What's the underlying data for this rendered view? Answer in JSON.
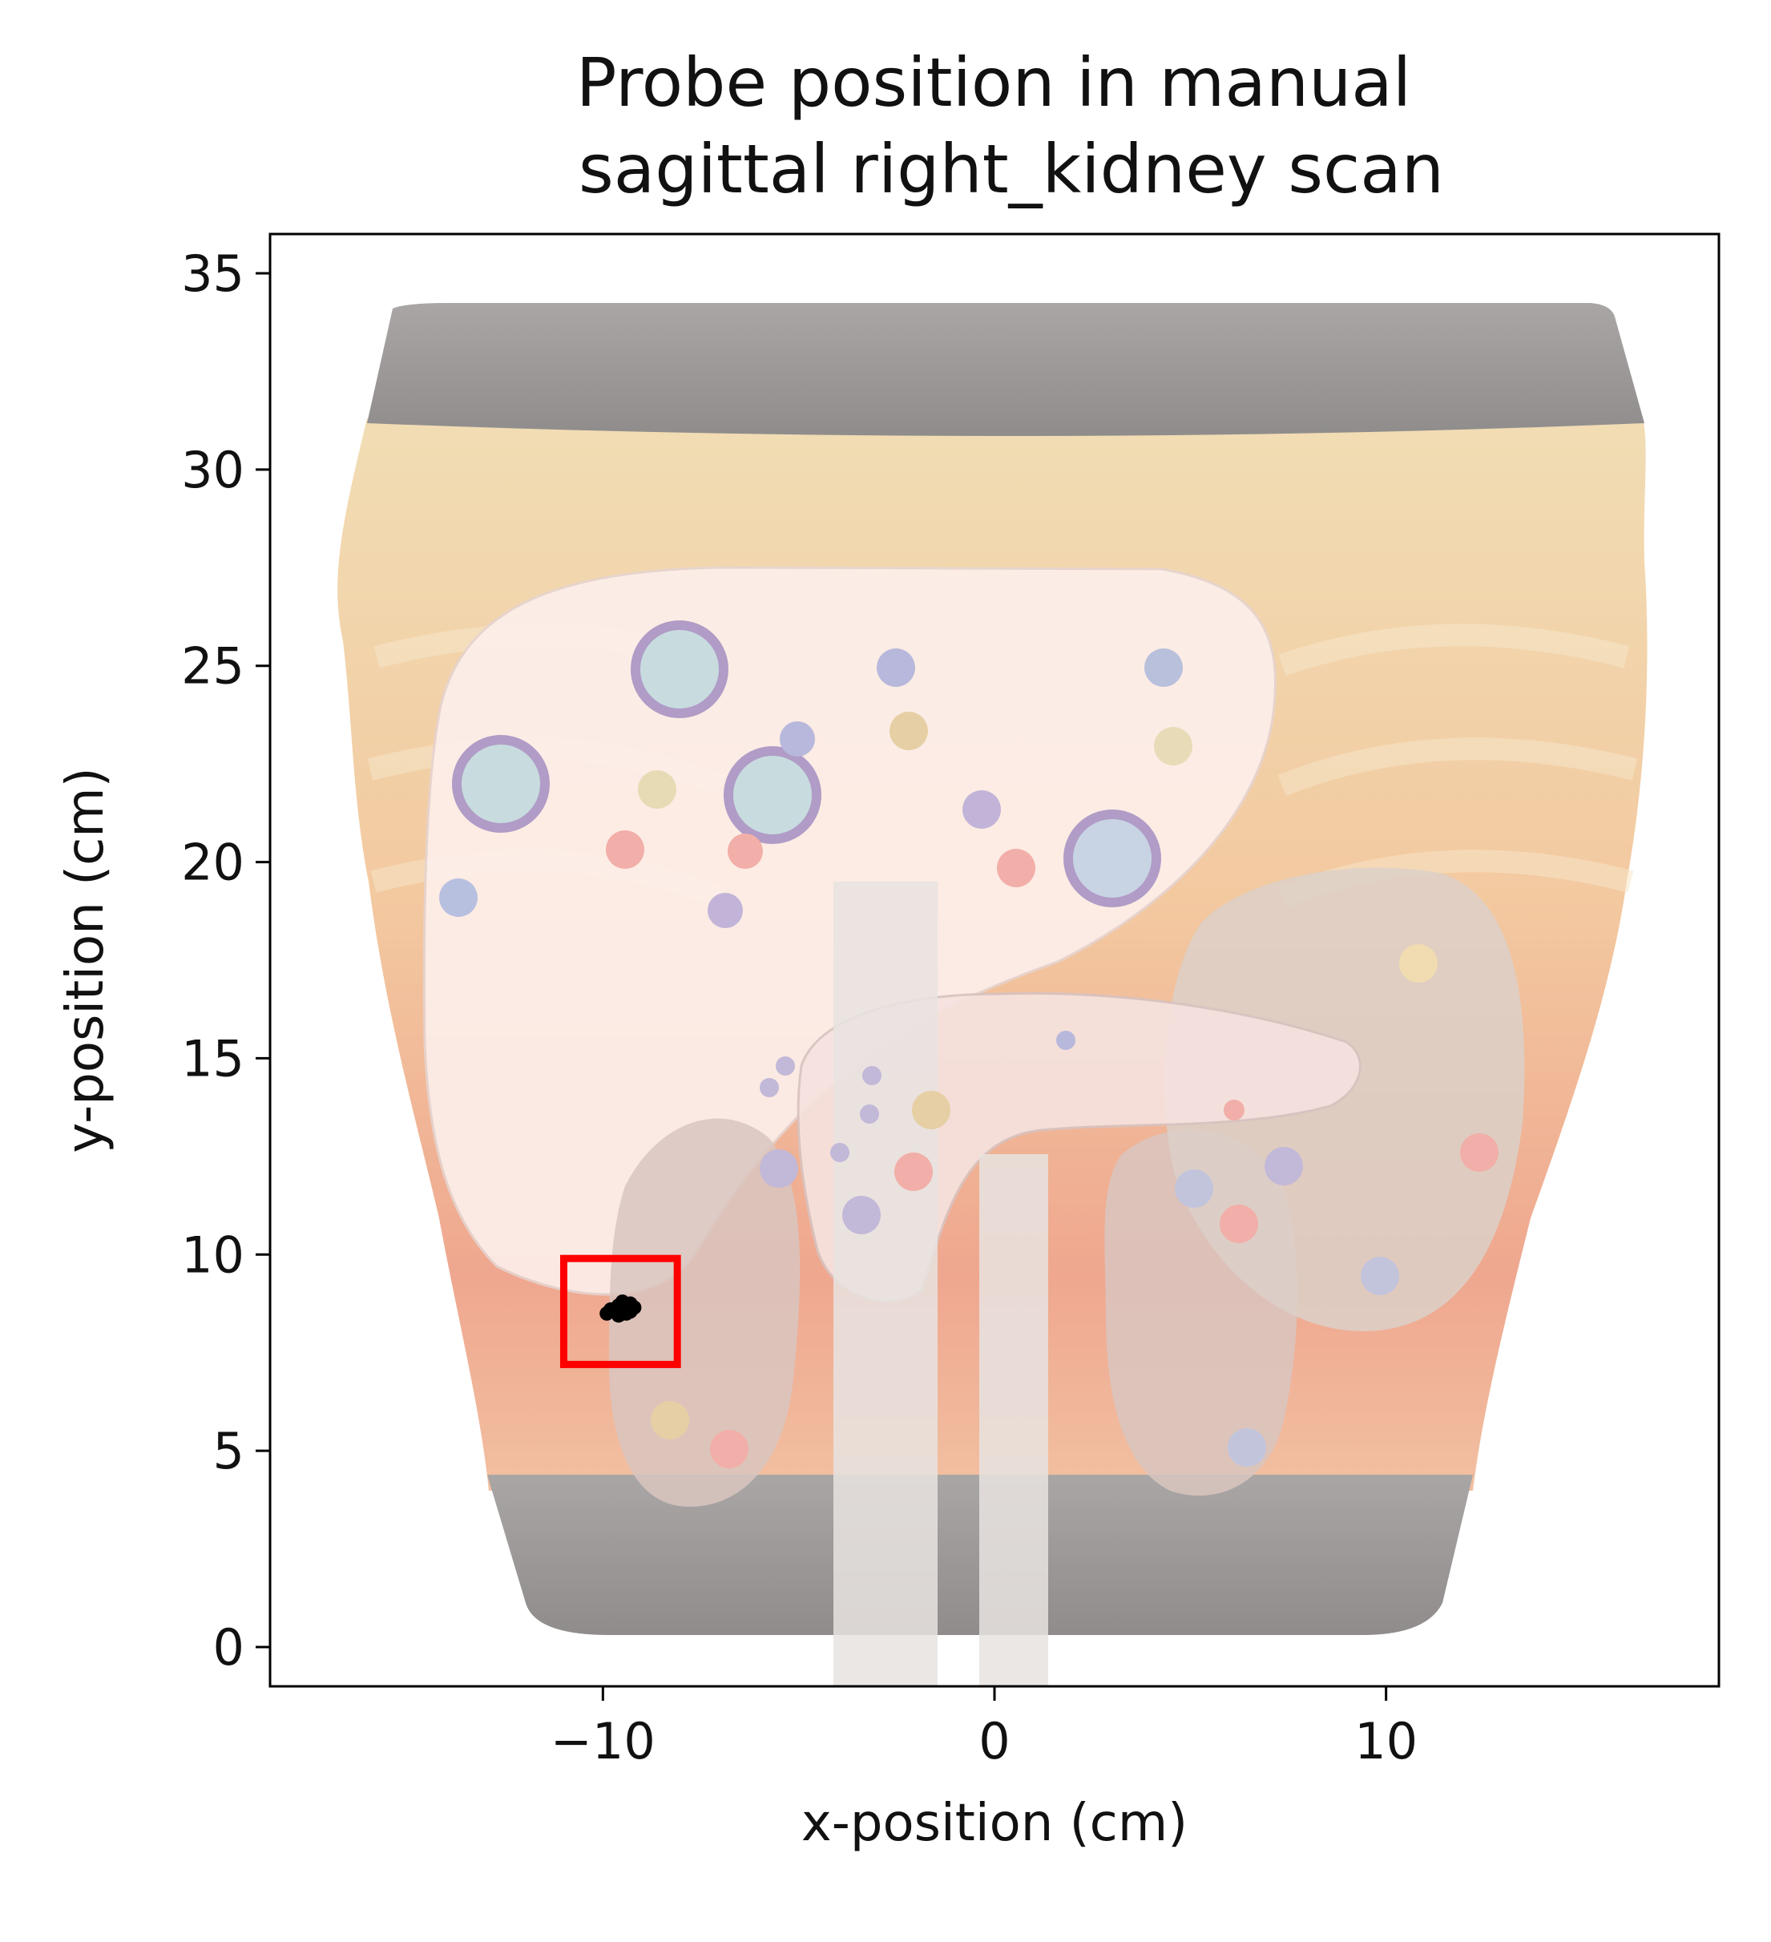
{
  "chart_data": {
    "type": "scatter",
    "title_lines": [
      "Probe position in manual",
      "sagittal right_kidney scan"
    ],
    "xlabel": "x-position (cm)",
    "ylabel": "y-position (cm)",
    "xlim": [
      -18.5,
      18.5
    ],
    "ylim": [
      -1,
      36
    ],
    "x_ticks": [
      -10,
      0,
      10
    ],
    "x_tick_labels": [
      "−10",
      "0",
      "10"
    ],
    "y_ticks": [
      0,
      5,
      10,
      15,
      20,
      25,
      30,
      35
    ],
    "y_tick_labels": [
      "0",
      "5",
      "10",
      "15",
      "20",
      "25",
      "30",
      "35"
    ],
    "grid": false,
    "background": "phantom torso image with abdominal organ illustration (liver, kidneys, pancreas, spleen) and lesion circles",
    "series": [
      {
        "marker_color": "#000000",
        "x": [
          -9.9,
          -9.8,
          -9.7,
          -9.6,
          -9.5,
          -9.4,
          -9.3,
          -9.2,
          -9.6,
          -9.5,
          -9.4,
          -9.7,
          -9.3
        ],
        "y": [
          8.5,
          8.6,
          8.55,
          8.7,
          8.5,
          8.6,
          8.75,
          8.65,
          8.45,
          8.8,
          8.5,
          8.6,
          8.55
        ]
      }
    ],
    "highlight_box": {
      "x": [
        -11.0,
        -8.1
      ],
      "y": [
        7.2,
        9.9
      ],
      "color": "#ff0000"
    }
  }
}
